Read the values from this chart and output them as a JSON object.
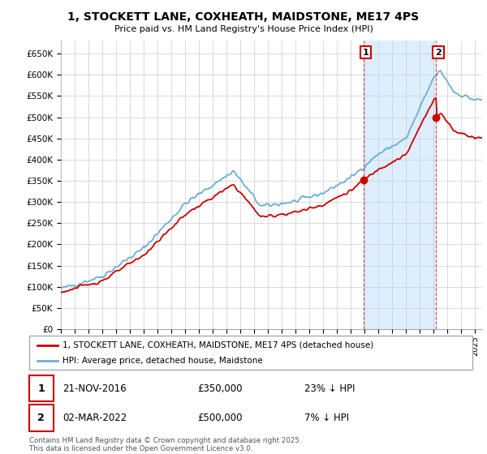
{
  "title": "1, STOCKETT LANE, COXHEATH, MAIDSTONE, ME17 4PS",
  "subtitle": "Price paid vs. HM Land Registry's House Price Index (HPI)",
  "ylim": [
    0,
    680000
  ],
  "yticks": [
    0,
    50000,
    100000,
    150000,
    200000,
    250000,
    300000,
    350000,
    400000,
    450000,
    500000,
    550000,
    600000,
    650000
  ],
  "hpi_color": "#6baed6",
  "price_color": "#cc0000",
  "shade_color": "#ddeeff",
  "background_color": "#ffffff",
  "grid_color": "#cccccc",
  "transaction1": {
    "date": "21-NOV-2016",
    "price": 350000,
    "label": "1",
    "hpi_diff": "23% ↓ HPI",
    "x": 2016.9
  },
  "transaction2": {
    "date": "02-MAR-2022",
    "price": 500000,
    "label": "2",
    "hpi_diff": "7% ↓ HPI",
    "x": 2022.17
  },
  "legend_line1": "1, STOCKETT LANE, COXHEATH, MAIDSTONE, ME17 4PS (detached house)",
  "legend_line2": "HPI: Average price, detached house, Maidstone",
  "footnote": "Contains HM Land Registry data © Crown copyright and database right 2025.\nThis data is licensed under the Open Government Licence v3.0.",
  "xlim_start": 1995,
  "xlim_end": 2025.5,
  "hpi_seed": 42,
  "price_seed": 123
}
